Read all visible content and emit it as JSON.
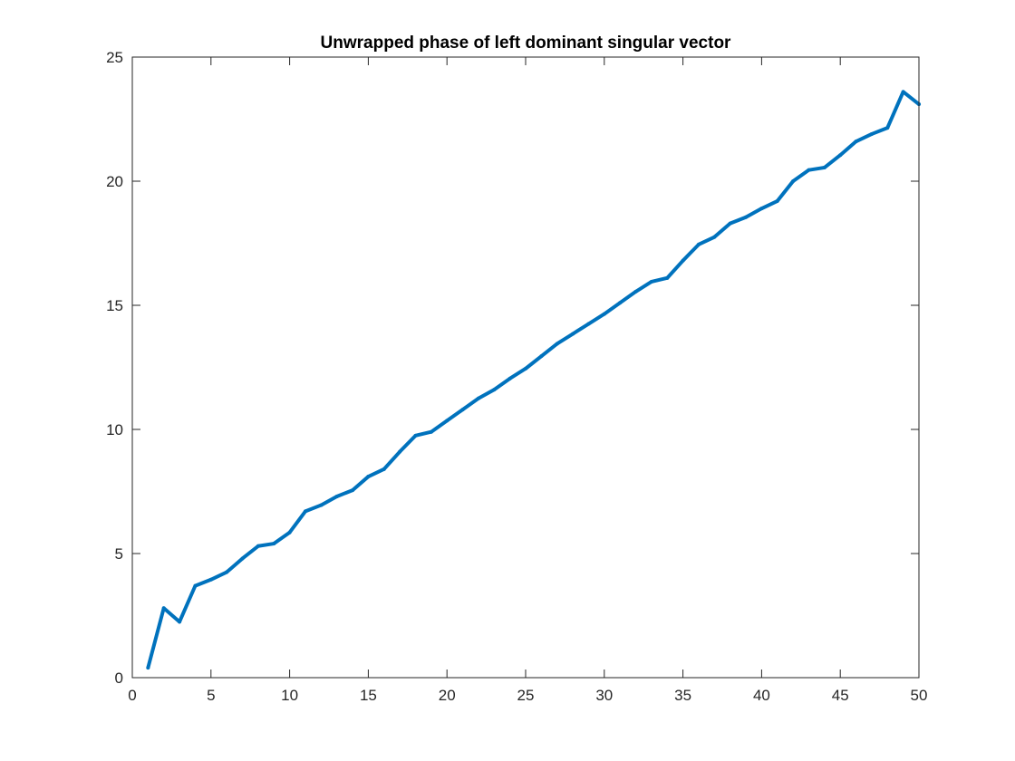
{
  "chart_data": {
    "type": "line",
    "title": "Unwrapped phase of left dominant singular vector",
    "xlabel": "",
    "ylabel": "",
    "xlim": [
      0,
      50
    ],
    "ylim": [
      0,
      25
    ],
    "xticks": [
      0,
      5,
      10,
      15,
      20,
      25,
      30,
      35,
      40,
      45,
      50
    ],
    "yticks": [
      0,
      5,
      10,
      15,
      20,
      25
    ],
    "grid": false,
    "legend": "none",
    "series": [
      {
        "color": "#0072BD",
        "x": [
          1,
          2,
          3,
          4,
          5,
          6,
          7,
          8,
          9,
          10,
          11,
          12,
          13,
          14,
          15,
          16,
          17,
          18,
          19,
          20,
          21,
          22,
          23,
          24,
          25,
          26,
          27,
          28,
          29,
          30,
          31,
          32,
          33,
          34,
          35,
          36,
          37,
          38,
          39,
          40,
          41,
          42,
          43,
          44,
          45,
          46,
          47,
          48,
          49,
          50
        ],
        "y": [
          0.4,
          2.8,
          2.25,
          3.7,
          3.95,
          4.25,
          4.8,
          5.3,
          5.4,
          5.85,
          6.7,
          6.95,
          7.3,
          7.55,
          8.1,
          8.4,
          9.1,
          9.75,
          9.9,
          10.35,
          10.8,
          11.25,
          11.6,
          12.05,
          12.45,
          12.95,
          13.45,
          13.85,
          14.25,
          14.65,
          15.1,
          15.55,
          15.95,
          16.1,
          16.8,
          17.45,
          17.75,
          18.3,
          18.55,
          18.9,
          19.2,
          20.0,
          20.45,
          20.55,
          21.05,
          21.6,
          21.9,
          22.15,
          23.6,
          23.1
        ]
      }
    ]
  }
}
